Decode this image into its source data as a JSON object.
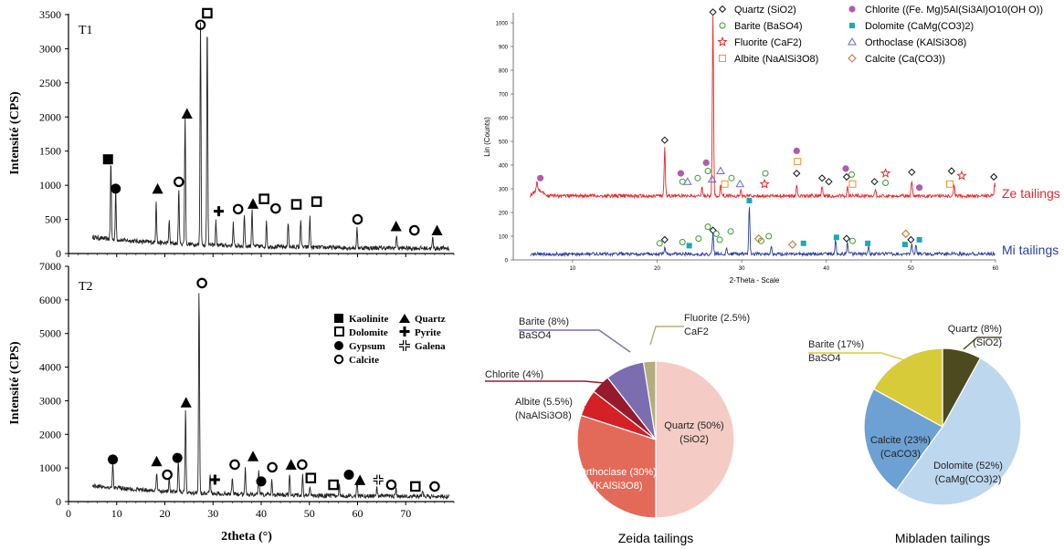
{
  "chart_data": [
    {
      "type": "line",
      "title": "T1",
      "xlabel": "",
      "ylabel": "Intensité (CPS)",
      "xlim": [
        0,
        80
      ],
      "ylim": [
        0,
        3500
      ],
      "x_ticks": [
        0,
        10,
        20,
        30,
        40,
        50,
        60,
        70
      ],
      "y_ticks": [
        0,
        500,
        1000,
        1500,
        2000,
        2500,
        3000,
        3500
      ],
      "peaks": [
        [
          8.8,
          1150
        ],
        [
          9.8,
          720
        ],
        [
          18.2,
          620
        ],
        [
          20.9,
          320
        ],
        [
          22.9,
          820
        ],
        [
          24.2,
          1900
        ],
        [
          27.4,
          3250
        ],
        [
          28.8,
          3300
        ],
        [
          30.6,
          360
        ],
        [
          34.2,
          330
        ],
        [
          36.5,
          480
        ],
        [
          38.1,
          560
        ],
        [
          41.1,
          380
        ],
        [
          45.6,
          380
        ],
        [
          48.2,
          420
        ],
        [
          50.1,
          450
        ],
        [
          59.9,
          280
        ],
        [
          68.1,
          200
        ],
        [
          75.6,
          150
        ]
      ],
      "markers": [
        {
          "sym": "kaolinite",
          "x": 8.2,
          "y": 1380
        },
        {
          "sym": "gypsum",
          "x": 9.8,
          "y": 950
        },
        {
          "sym": "quartz",
          "x": 18.5,
          "y": 950
        },
        {
          "sym": "calcite",
          "x": 22.9,
          "y": 1050
        },
        {
          "sym": "quartz",
          "x": 24.6,
          "y": 2050
        },
        {
          "sym": "calcite",
          "x": 27.4,
          "y": 3350
        },
        {
          "sym": "dolomite",
          "x": 28.8,
          "y": 3520
        },
        {
          "sym": "pyrite",
          "x": 31.2,
          "y": 620
        },
        {
          "sym": "calcite",
          "x": 35.2,
          "y": 650
        },
        {
          "sym": "quartz",
          "x": 38.3,
          "y": 730
        },
        {
          "sym": "dolomite",
          "x": 40.6,
          "y": 800
        },
        {
          "sym": "calcite",
          "x": 43.0,
          "y": 660
        },
        {
          "sym": "dolomite",
          "x": 47.3,
          "y": 720
        },
        {
          "sym": "dolomite",
          "x": 51.5,
          "y": 760
        },
        {
          "sym": "calcite",
          "x": 60.0,
          "y": 500
        },
        {
          "sym": "quartz",
          "x": 68.0,
          "y": 400
        },
        {
          "sym": "calcite",
          "x": 71.8,
          "y": 340
        },
        {
          "sym": "quartz",
          "x": 76.5,
          "y": 340
        }
      ]
    },
    {
      "type": "line",
      "title": "T2",
      "xlabel": "2theta (°)",
      "ylabel": "Intensité (CPS)",
      "xlim": [
        0,
        80
      ],
      "ylim": [
        0,
        7000
      ],
      "x_ticks": [
        0,
        10,
        20,
        30,
        40,
        50,
        60,
        70
      ],
      "y_ticks": [
        0,
        1000,
        2000,
        3000,
        4000,
        5000,
        6000,
        7000
      ],
      "peaks": [
        [
          9.2,
          700
        ],
        [
          18.3,
          520
        ],
        [
          20.9,
          380
        ],
        [
          22.8,
          950
        ],
        [
          24.3,
          2500
        ],
        [
          27.1,
          6100
        ],
        [
          29.4,
          550
        ],
        [
          34.0,
          480
        ],
        [
          36.7,
          820
        ],
        [
          39.5,
          700
        ],
        [
          42.2,
          450
        ],
        [
          45.9,
          650
        ],
        [
          48.6,
          600
        ],
        [
          50.1,
          250
        ],
        [
          56.2,
          300
        ],
        [
          59.9,
          400
        ],
        [
          64.0,
          280
        ],
        [
          68.0,
          200
        ],
        [
          73.5,
          150
        ]
      ],
      "markers": [
        {
          "sym": "gypsum",
          "x": 9.2,
          "y": 1250
        },
        {
          "sym": "quartz",
          "x": 18.3,
          "y": 1200
        },
        {
          "sym": "calcite",
          "x": 20.5,
          "y": 800
        },
        {
          "sym": "gypsum",
          "x": 22.6,
          "y": 1300
        },
        {
          "sym": "quartz",
          "x": 24.4,
          "y": 2950
        },
        {
          "sym": "calcite",
          "x": 27.7,
          "y": 6500
        },
        {
          "sym": "pyrite",
          "x": 30.4,
          "y": 650
        },
        {
          "sym": "calcite",
          "x": 34.5,
          "y": 1100
        },
        {
          "sym": "quartz",
          "x": 38.3,
          "y": 1350
        },
        {
          "sym": "gypsum",
          "x": 40.0,
          "y": 600
        },
        {
          "sym": "calcite",
          "x": 42.3,
          "y": 1020
        },
        {
          "sym": "quartz",
          "x": 46.2,
          "y": 1100
        },
        {
          "sym": "calcite",
          "x": 48.5,
          "y": 1100
        },
        {
          "sym": "dolomite",
          "x": 50.3,
          "y": 700
        },
        {
          "sym": "dolomite",
          "x": 55.0,
          "y": 500
        },
        {
          "sym": "gypsum",
          "x": 58.2,
          "y": 800
        },
        {
          "sym": "quartz",
          "x": 60.5,
          "y": 640
        },
        {
          "sym": "galena",
          "x": 64.3,
          "y": 650
        },
        {
          "sym": "calcite",
          "x": 67.0,
          "y": 500
        },
        {
          "sym": "dolomite",
          "x": 72.0,
          "y": 450
        },
        {
          "sym": "calcite",
          "x": 76.0,
          "y": 450
        }
      ]
    },
    {
      "type": "line",
      "title": "",
      "xlabel": "2-Theta - Scale",
      "ylabel": "Lin (Counts)",
      "xlim": [
        3,
        60
      ],
      "ylim": [
        0,
        1050
      ],
      "x_ticks": [
        10,
        20,
        30,
        40,
        50,
        60
      ],
      "y_ticks": [
        0,
        100,
        200,
        300,
        400,
        500,
        600,
        700,
        800,
        900,
        1000
      ],
      "series": [
        {
          "name": "Ze tailings",
          "baseline": 270,
          "peaks": [
            [
              5.8,
              40
            ],
            [
              20.9,
              200
            ],
            [
              26.6,
              760
            ],
            [
              25.3,
              40
            ],
            [
              27.5,
              50
            ],
            [
              29.9,
              30
            ],
            [
              36.5,
              50
            ],
            [
              39.5,
              40
            ],
            [
              42.5,
              40
            ],
            [
              45.8,
              30
            ],
            [
              50.1,
              70
            ],
            [
              55.1,
              40
            ],
            [
              59.9,
              50
            ]
          ]
        },
        {
          "name": "Mi tailings",
          "baseline": 25,
          "peaks": [
            [
              20.9,
              30
            ],
            [
              26.6,
              90
            ],
            [
              28.2,
              30
            ],
            [
              30.9,
              200
            ],
            [
              33.5,
              30
            ],
            [
              41.1,
              60
            ],
            [
              42.5,
              50
            ],
            [
              45.0,
              30
            ],
            [
              50.1,
              40
            ],
            [
              50.6,
              40
            ]
          ]
        }
      ],
      "markers": [
        {
          "sym": "chlorite",
          "x": 6.2,
          "y": 345
        },
        {
          "sym": "quartz",
          "x": 20.9,
          "y": 505
        },
        {
          "sym": "chlorite",
          "x": 22.8,
          "y": 365
        },
        {
          "sym": "barite",
          "x": 23.0,
          "y": 330
        },
        {
          "sym": "orthoclase",
          "x": 23.6,
          "y": 330
        },
        {
          "sym": "barite",
          "x": 24.8,
          "y": 345
        },
        {
          "sym": "barite",
          "x": 26.0,
          "y": 375
        },
        {
          "sym": "chlorite",
          "x": 25.8,
          "y": 410
        },
        {
          "sym": "orthoclase",
          "x": 26.5,
          "y": 340
        },
        {
          "sym": "quartz",
          "x": 26.6,
          "y": 1045
        },
        {
          "sym": "orthoclase",
          "x": 27.5,
          "y": 375
        },
        {
          "sym": "albite",
          "x": 28.0,
          "y": 320
        },
        {
          "sym": "barite",
          "x": 28.8,
          "y": 345
        },
        {
          "sym": "orthoclase",
          "x": 29.8,
          "y": 320
        },
        {
          "sym": "barite",
          "x": 32.8,
          "y": 365
        },
        {
          "sym": "fluorite",
          "x": 32.7,
          "y": 320
        },
        {
          "sym": "chlorite",
          "x": 36.5,
          "y": 460
        },
        {
          "sym": "albite",
          "x": 36.6,
          "y": 415
        },
        {
          "sym": "quartz",
          "x": 36.5,
          "y": 365
        },
        {
          "sym": "quartz",
          "x": 39.5,
          "y": 345
        },
        {
          "sym": "quartz",
          "x": 40.3,
          "y": 330
        },
        {
          "sym": "chlorite",
          "x": 42.3,
          "y": 385
        },
        {
          "sym": "quartz",
          "x": 42.4,
          "y": 350
        },
        {
          "sym": "barite",
          "x": 43.0,
          "y": 360
        },
        {
          "sym": "albite",
          "x": 43.1,
          "y": 320
        },
        {
          "sym": "quartz",
          "x": 45.7,
          "y": 330
        },
        {
          "sym": "fluorite",
          "x": 47.0,
          "y": 365
        },
        {
          "sym": "barite",
          "x": 47.0,
          "y": 325
        },
        {
          "sym": "quartz",
          "x": 50.1,
          "y": 370
        },
        {
          "sym": "chlorite",
          "x": 51.0,
          "y": 305
        },
        {
          "sym": "quartz",
          "x": 54.8,
          "y": 375
        },
        {
          "sym": "albite",
          "x": 54.6,
          "y": 320
        },
        {
          "sym": "fluorite",
          "x": 56.0,
          "y": 355
        },
        {
          "sym": "quartz",
          "x": 59.8,
          "y": 350
        },
        {
          "sym": "barite",
          "x": 20.3,
          "y": 70
        },
        {
          "sym": "quartz",
          "x": 20.9,
          "y": 85
        },
        {
          "sym": "barite",
          "x": 23.0,
          "y": 75
        },
        {
          "sym": "dolomite",
          "x": 23.8,
          "y": 60
        },
        {
          "sym": "barite",
          "x": 24.9,
          "y": 90
        },
        {
          "sym": "barite",
          "x": 26.0,
          "y": 140
        },
        {
          "sym": "quartz",
          "x": 26.6,
          "y": 125
        },
        {
          "sym": "barite",
          "x": 27.0,
          "y": 110
        },
        {
          "sym": "barite",
          "x": 27.4,
          "y": 85
        },
        {
          "sym": "barite",
          "x": 28.7,
          "y": 120
        },
        {
          "sym": "dolomite",
          "x": 30.9,
          "y": 250
        },
        {
          "sym": "barite",
          "x": 32.3,
          "y": 80
        },
        {
          "sym": "calcite",
          "x": 32.0,
          "y": 90
        },
        {
          "sym": "barite",
          "x": 33.2,
          "y": 100
        },
        {
          "sym": "calcite",
          "x": 36.0,
          "y": 65
        },
        {
          "sym": "dolomite",
          "x": 37.3,
          "y": 70
        },
        {
          "sym": "dolomite",
          "x": 41.2,
          "y": 95
        },
        {
          "sym": "quartz",
          "x": 42.4,
          "y": 90
        },
        {
          "sym": "barite",
          "x": 43.1,
          "y": 80
        },
        {
          "sym": "dolomite",
          "x": 44.9,
          "y": 70
        },
        {
          "sym": "dolomite",
          "x": 49.3,
          "y": 65
        },
        {
          "sym": "calcite",
          "x": 49.4,
          "y": 110
        },
        {
          "sym": "quartz",
          "x": 50.0,
          "y": 85
        },
        {
          "sym": "dolomite",
          "x": 51.0,
          "y": 85
        }
      ]
    },
    {
      "type": "pie",
      "title": "Zeida tailings",
      "slices": [
        {
          "label": "Quartz (50%)",
          "sub": "(SiO2)",
          "value": 50,
          "color": "#f4ccc5"
        },
        {
          "label": "Orthoclase (30%)",
          "sub": "(KAlSi3O8)",
          "value": 30,
          "color": "#e36a58"
        },
        {
          "label": "Albite (5.5%)",
          "sub": "(NaAlSi3O8)",
          "value": 5.5,
          "color": "#d32126"
        },
        {
          "label": "Chlorite (4%)",
          "sub": "",
          "value": 4,
          "color": "#971a2c"
        },
        {
          "label": "Barite (8%)",
          "sub": "BaSO4",
          "value": 8,
          "color": "#7b6db0"
        },
        {
          "label": "Fluorite (2.5%)",
          "sub": "CaF2",
          "value": 2.5,
          "color": "#b3ad7e"
        }
      ]
    },
    {
      "type": "pie",
      "title": "Mibladen tailings",
      "slices": [
        {
          "label": "Quartz (8%)",
          "sub": "(SiO2)",
          "value": 8,
          "color": "#4d4a20"
        },
        {
          "label": "Dolomite (52%)",
          "sub": "(CaMg(CO3)2)",
          "value": 52,
          "color": "#bdd7ee"
        },
        {
          "label": "Calcite (23%)",
          "sub": "(CaCO3)",
          "value": 23,
          "color": "#6da1d4"
        },
        {
          "label": "Barite (17%)",
          "sub": "BaSO4",
          "value": 17,
          "color": "#d8cb39"
        }
      ]
    }
  ],
  "legend_t": {
    "kaolinite": "Kaolinite",
    "quartz": "Quartz",
    "dolomite": "Dolomite",
    "pyrite": "Pyrite",
    "gypsum": "Gypsum",
    "galena": "Galena",
    "calcite": "Calcite"
  },
  "legend_xrd": {
    "quartz": "Quartz (SiO2)",
    "barite": "Barite (BaSO4)",
    "fluorite": "Fluorite (CaF2)",
    "albite": "Albite (NaAlSi3O8)",
    "chlorite": "Chlorite ((Fe. Mg)5Al(Si3Al)O10(OH O))",
    "dolomite": "Dolomite (CaMg(CO3)2)",
    "orthoclase": "Orthoclase (KAlSi3O8)",
    "calcite": "Calcite (Ca(CO3))"
  },
  "colors": {
    "ze": "#e8262a",
    "mi": "#2a3f9d",
    "quartz_x": "#111111",
    "barite_x": "#33a02c",
    "fluorite_x": "#e02a2a",
    "albite_x": "#f0932b",
    "chlorite_x": "#b15bb0",
    "dolomite_x": "#1aa9b5",
    "orthoclase_x": "#6b6bc4",
    "calcite_x": "#c8753a"
  }
}
